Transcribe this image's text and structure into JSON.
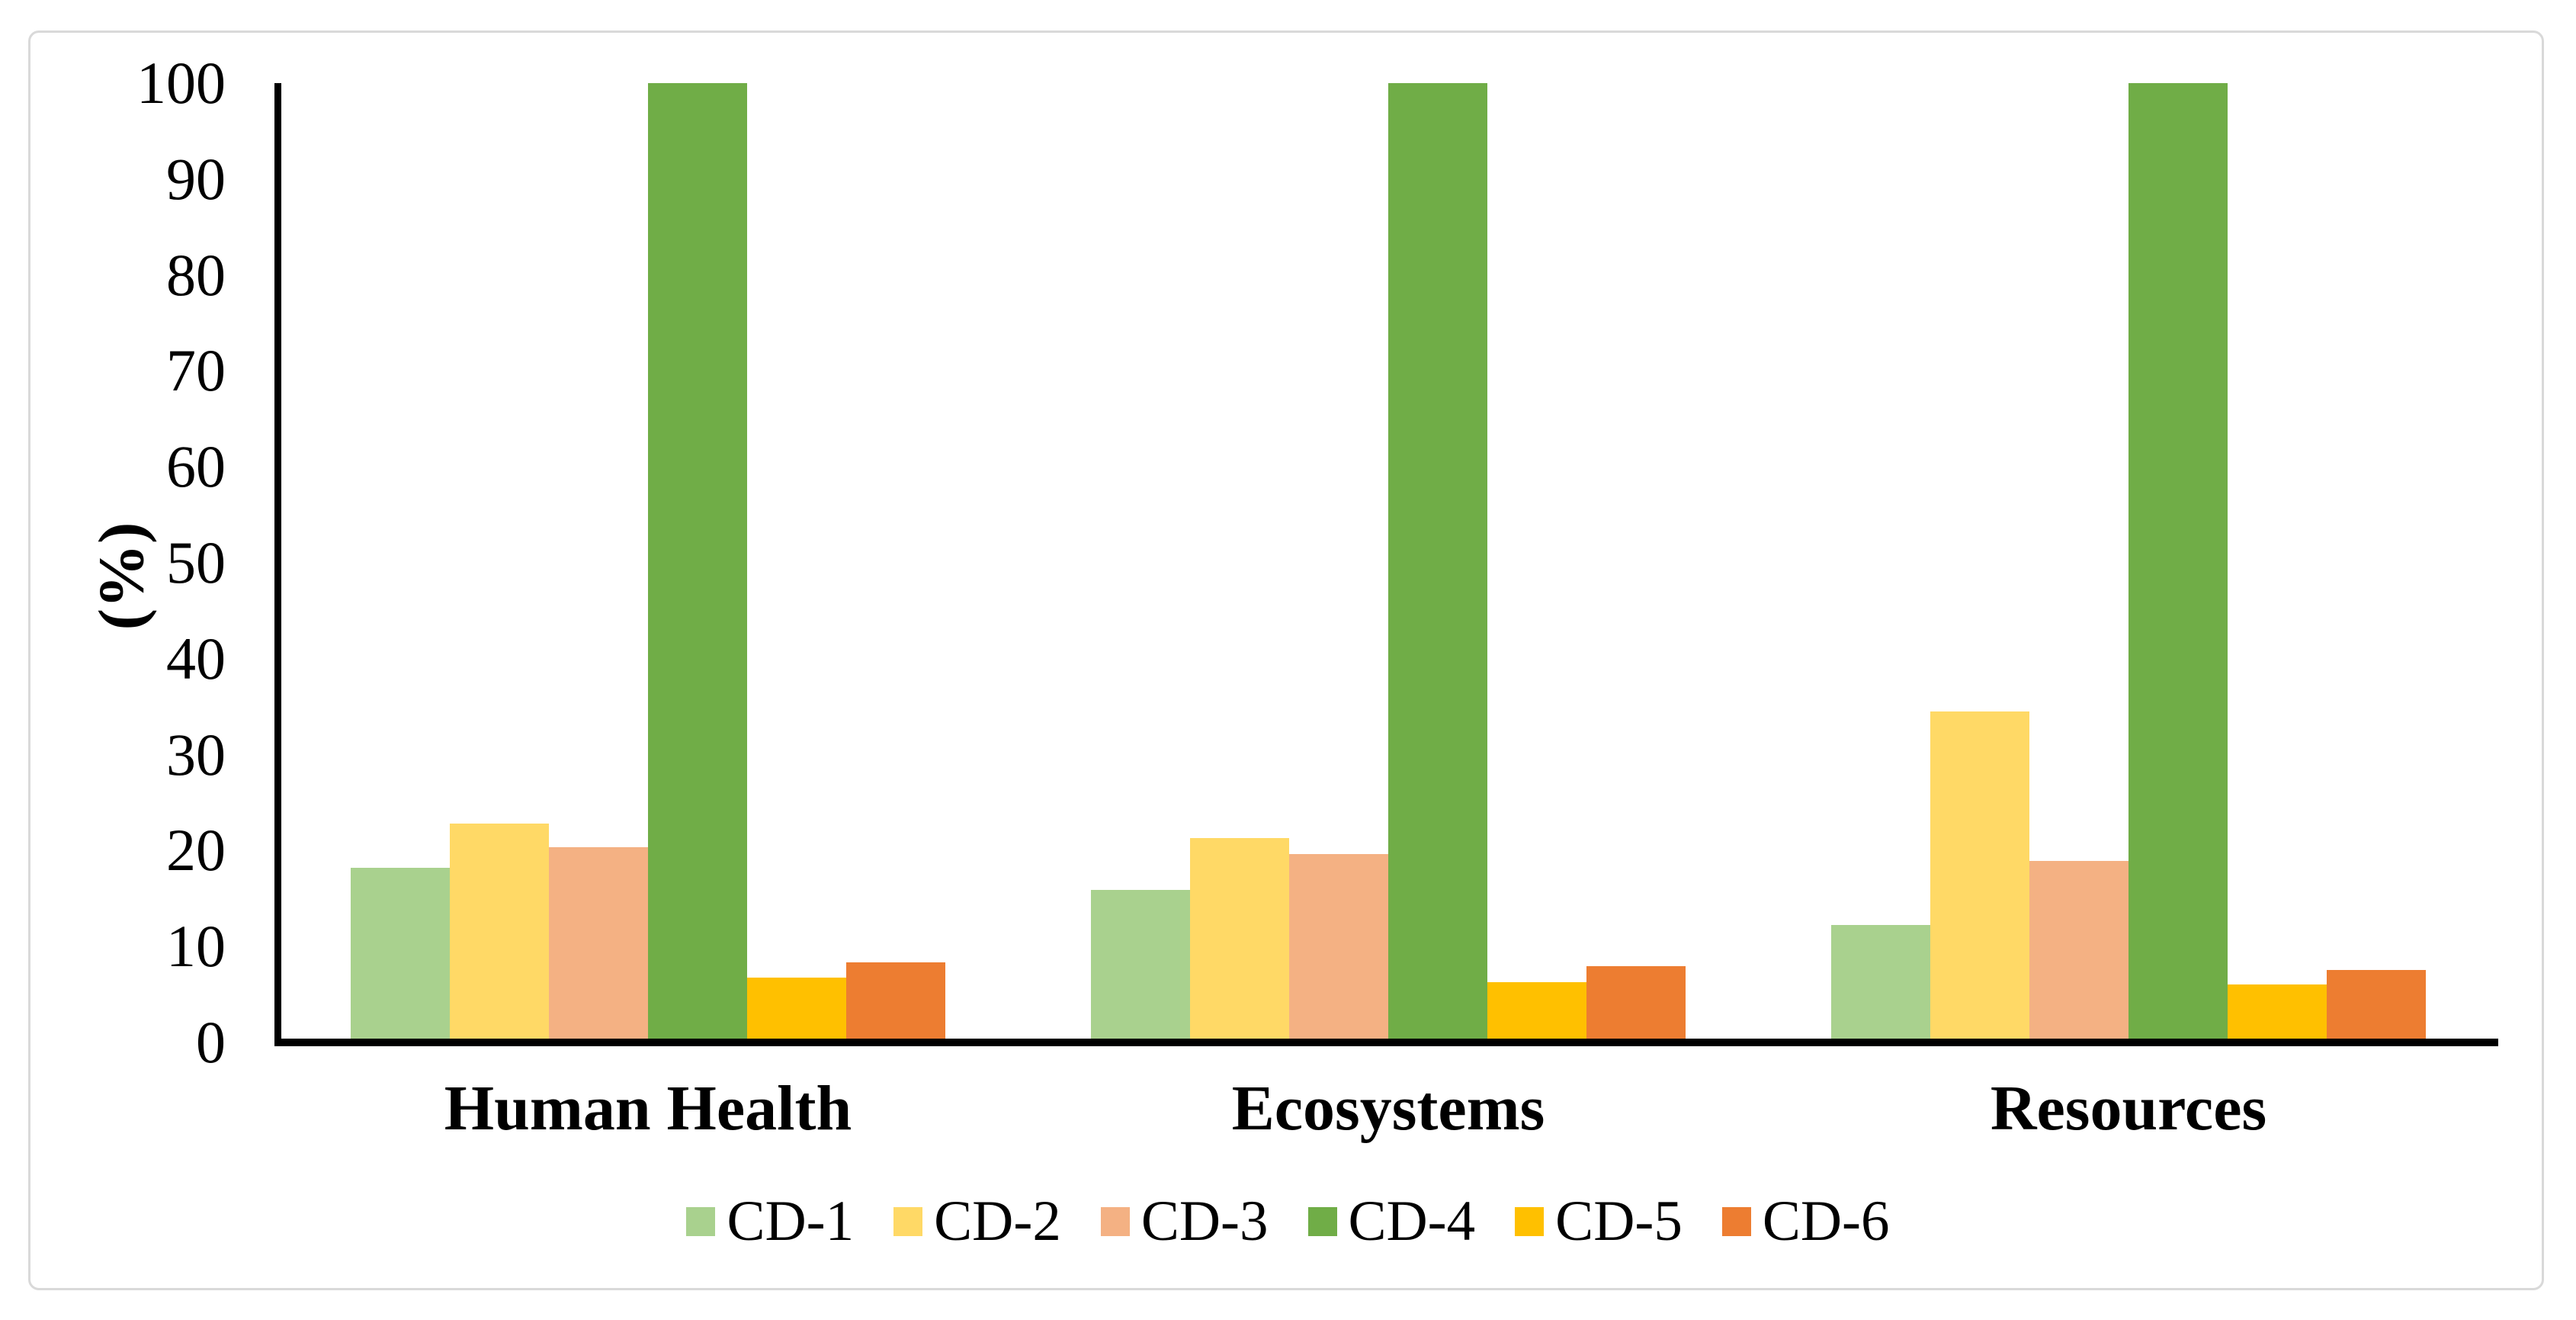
{
  "figure": {
    "background": "#ffffff",
    "border_color": "#d9d9d9",
    "axis_color": "#000000"
  },
  "chart_data": {
    "type": "bar",
    "title": "",
    "ylabel": "(%)",
    "xlabel": "",
    "categories": [
      "Human Health",
      "Ecosystems",
      "Resources"
    ],
    "series": [
      {
        "name": "CD-1",
        "color": "#A9D18E",
        "values": [
          17.9,
          15.6,
          11.9
        ]
      },
      {
        "name": "CD-2",
        "color": "#FFD966",
        "values": [
          22.5,
          21.0,
          34.2
        ]
      },
      {
        "name": "CD-3",
        "color": "#F4B183",
        "values": [
          20.0,
          19.3,
          18.6
        ]
      },
      {
        "name": "CD-4",
        "color": "#70AD47",
        "values": [
          100,
          100,
          100
        ]
      },
      {
        "name": "CD-5",
        "color": "#FFC000",
        "values": [
          6.4,
          5.9,
          5.7
        ]
      },
      {
        "name": "CD-6",
        "color": "#ED7D31",
        "values": [
          8.0,
          7.6,
          7.2
        ]
      }
    ],
    "ylim": [
      0,
      100
    ],
    "yticks": [
      100,
      90,
      80,
      70,
      60,
      50,
      40,
      30,
      20,
      10,
      0
    ],
    "grid": false,
    "legend_position": "bottom-center",
    "bar_gap_within_group": 0
  }
}
